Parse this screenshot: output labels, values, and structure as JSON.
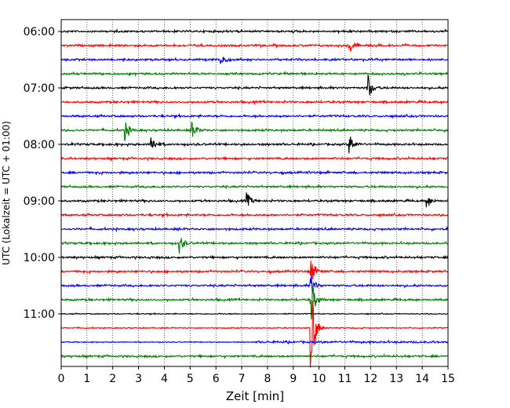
{
  "chart_data": {
    "type": "line",
    "title": "",
    "xlabel": "Zeit  [min]",
    "ylabel": "UTC (Lokalzeit = UTC + 01:00)",
    "xlim": [
      0,
      15
    ],
    "x_ticks": [
      0,
      1,
      2,
      3,
      4,
      5,
      6,
      7,
      8,
      9,
      10,
      11,
      12,
      13,
      14,
      15
    ],
    "y_tick_labels": [
      "06:00",
      "07:00",
      "08:00",
      "09:00",
      "10:00",
      "11:00"
    ],
    "grid": "vertical dotted lines at each minute",
    "trace_colors": [
      "#000000",
      "#ff0000",
      "#0000ff",
      "#008000"
    ],
    "traces_start_utc": "06:00",
    "trace_interval_min": 15,
    "trace_count": 24,
    "events": [
      {
        "trace": 4,
        "x": 11.9,
        "amp": 1.0
      },
      {
        "trace": 8,
        "x": 3.5,
        "amp": 0.7
      },
      {
        "trace": 8,
        "x": 11.2,
        "amp": 0.7
      },
      {
        "trace": 2,
        "x": 6.2,
        "amp": 0.6
      },
      {
        "trace": 1,
        "x": 11.2,
        "amp": 0.6
      },
      {
        "trace": 7,
        "x": 2.5,
        "amp": 0.7
      },
      {
        "trace": 7,
        "x": 5.1,
        "amp": 0.6
      },
      {
        "trace": 12,
        "x": 7.2,
        "amp": 0.6
      },
      {
        "trace": 12,
        "x": 14.2,
        "amp": 0.5
      },
      {
        "trace": 15,
        "x": 4.6,
        "amp": 0.7
      },
      {
        "trace": 19,
        "x": 9.7,
        "amp": 1.5
      },
      {
        "trace": 21,
        "x": 9.7,
        "amp": 7.0
      },
      {
        "trace": 17,
        "x": 9.7,
        "amp": 1.0
      },
      {
        "trace": 18,
        "x": 9.7,
        "amp": 0.8
      }
    ]
  }
}
